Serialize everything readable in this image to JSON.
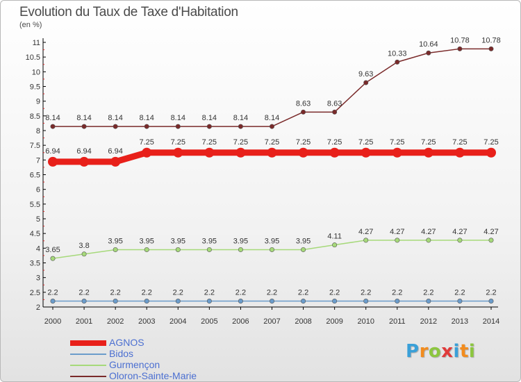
{
  "chart_data": {
    "type": "line",
    "title": "Evolution du Taux de Taxe d'Habitation",
    "subtitle": "(en %)",
    "x": [
      "2000",
      "2001",
      "2002",
      "2003",
      "2004",
      "2005",
      "2006",
      "2007",
      "2008",
      "2009",
      "2010",
      "2011",
      "2012",
      "2013",
      "2014"
    ],
    "ylim": [
      2,
      11
    ],
    "yticks": [
      2,
      2.5,
      3,
      3.5,
      4,
      4.5,
      5,
      5.5,
      6,
      6.5,
      7,
      7.5,
      8,
      8.5,
      9,
      9.5,
      10,
      10.5,
      11
    ],
    "grid": false,
    "legend_position": "bottom-left",
    "series": [
      {
        "name": "AGNOS",
        "color": "#e8201a",
        "values": [
          6.94,
          6.94,
          6.94,
          7.25,
          7.25,
          7.25,
          7.25,
          7.25,
          7.25,
          7.25,
          7.25,
          7.25,
          7.25,
          7.25,
          7.25
        ],
        "labels": [
          "6.94",
          "6.94",
          "6.94",
          "7.25",
          "7.25",
          "7.25",
          "7.25",
          "7.25",
          "7.25",
          "7.25",
          "7.25",
          "7.25",
          "7.25",
          "7.25",
          "7.25"
        ]
      },
      {
        "name": "Bidos",
        "color": "#6b9ccb",
        "values": [
          2.2,
          2.2,
          2.2,
          2.2,
          2.2,
          2.2,
          2.2,
          2.2,
          2.2,
          2.2,
          2.2,
          2.2,
          2.2,
          2.2,
          2.2
        ],
        "labels": [
          "2.2",
          "2.2",
          "2.2",
          "2.2",
          "2.2",
          "2.2",
          "2.2",
          "2.2",
          "2.2",
          "2.2",
          "2.2",
          "2.2",
          "2.2",
          "2.2",
          "2.2"
        ]
      },
      {
        "name": "Gurmençon",
        "color": "#a6d97a",
        "values": [
          3.65,
          3.8,
          3.95,
          3.95,
          3.95,
          3.95,
          3.95,
          3.95,
          3.95,
          4.11,
          4.27,
          4.27,
          4.27,
          4.27,
          4.27
        ],
        "labels": [
          "3.65",
          "3.8",
          "3.95",
          "3.95",
          "3.95",
          "3.95",
          "3.95",
          "3.95",
          "3.95",
          "4.11",
          "4.27",
          "4.27",
          "4.27",
          "4.27",
          "4.27"
        ]
      },
      {
        "name": "Oloron-Sainte-Marie",
        "color": "#7a2a2a",
        "values": [
          8.14,
          8.14,
          8.14,
          8.14,
          8.14,
          8.14,
          8.14,
          8.14,
          8.63,
          8.63,
          9.63,
          10.33,
          10.64,
          10.78,
          10.78
        ],
        "labels": [
          "8.14",
          "8.14",
          "8.14",
          "8.14",
          "8.14",
          "8.14",
          "8.14",
          "8.14",
          "8.63",
          "8.63",
          "9.63",
          "10.33",
          "10.64",
          "10.78",
          "10.78"
        ]
      }
    ]
  },
  "legend": {
    "items": [
      {
        "label": "AGNOS",
        "color": "#e8201a"
      },
      {
        "label": "Bidos",
        "color": "#6b9ccb"
      },
      {
        "label": "Gurmençon",
        "color": "#a6d97a"
      },
      {
        "label": "Oloron-Sainte-Marie",
        "color": "#7a2a2a"
      }
    ]
  },
  "logo": {
    "text": "Proxiti",
    "letter_colors": [
      "#3aa0d8",
      "#f28c1e",
      "#8cc63f",
      "#e03a3a",
      "#3aa0d8",
      "#f28c1e",
      "#8cc63f"
    ]
  }
}
